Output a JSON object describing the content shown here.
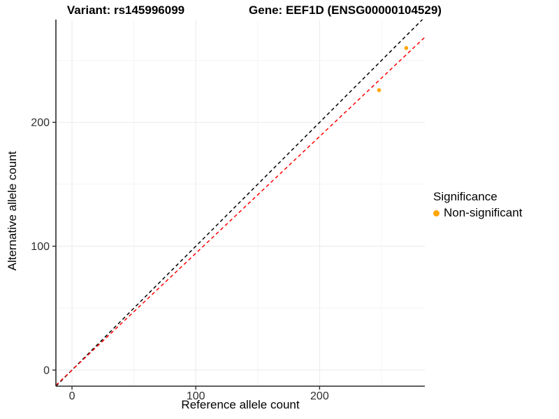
{
  "chart_data": {
    "type": "scatter",
    "title_left": "Variant: rs145996099",
    "title_right": "Gene: EEF1D (ENSG00000104529)",
    "xlabel": "Reference allele count",
    "ylabel": "Alternative allele count",
    "x_ticks": [
      0,
      100,
      200
    ],
    "y_ticks": [
      0,
      100,
      200
    ],
    "x_minor_ticks": [
      50,
      150,
      250
    ],
    "y_minor_ticks": [
      50,
      150,
      250
    ],
    "xlim": [
      -13,
      285
    ],
    "ylim": [
      -13,
      283
    ],
    "grid": true,
    "legend_position": "right",
    "point_color": "#FFA500",
    "points": [
      {
        "x": 248,
        "y": 226,
        "significance": "Non-significant"
      },
      {
        "x": 270,
        "y": 260,
        "significance": "Non-significant"
      }
    ],
    "lines": [
      {
        "name": "identity",
        "slope": 1,
        "intercept": 0,
        "style": "dashed",
        "color": "#000000"
      },
      {
        "name": "fit",
        "slope": 0.943,
        "intercept": 0,
        "style": "dashed",
        "color": "#FF0000"
      }
    ],
    "legend": {
      "title": "Significance",
      "items": [
        {
          "label": "Non-significant",
          "color": "#FFA500"
        }
      ]
    }
  }
}
